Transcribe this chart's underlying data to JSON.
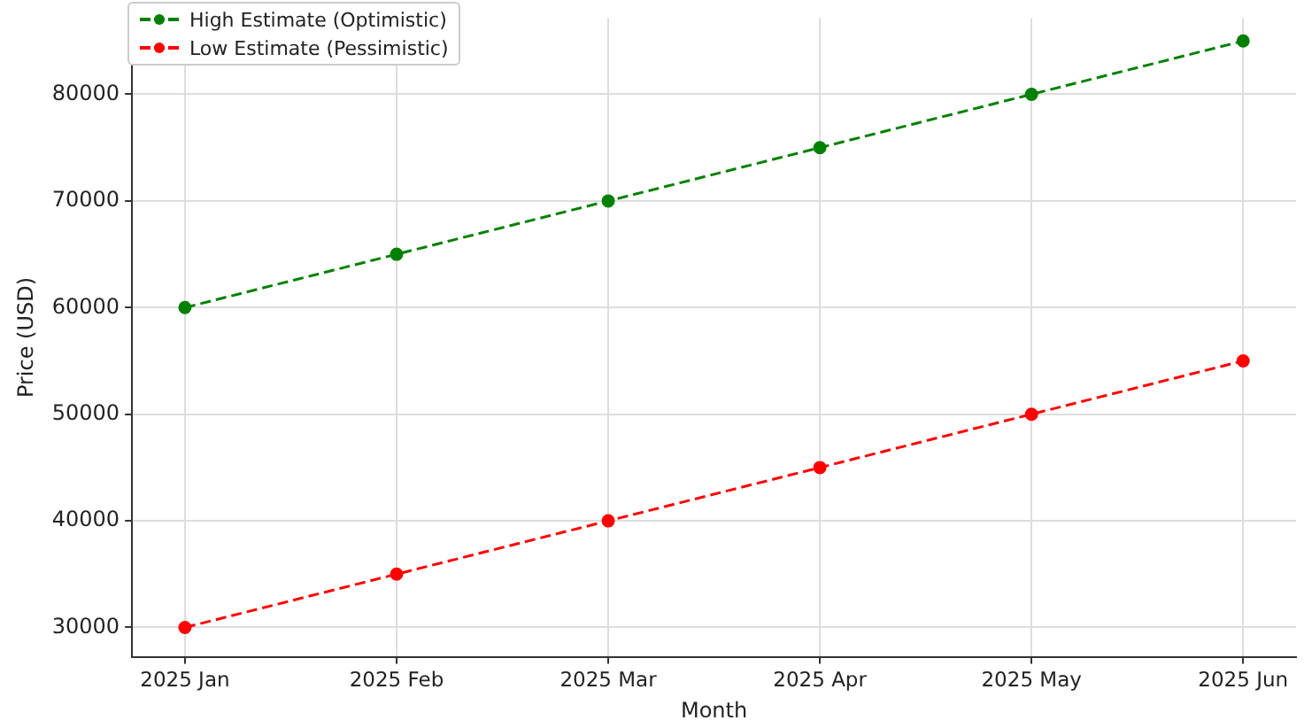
{
  "chart_data": {
    "type": "line",
    "xlabel": "Month",
    "ylabel": "Price (USD)",
    "categories": [
      "2025 Jan",
      "2025 Feb",
      "2025 Mar",
      "2025 Apr",
      "2025 May",
      "2025 Jun"
    ],
    "series": [
      {
        "name": "High Estimate (Optimistic)",
        "color": "#008000",
        "values": [
          60000,
          65000,
          70000,
          75000,
          80000,
          85000
        ]
      },
      {
        "name": "Low Estimate (Pessimistic)",
        "color": "#ff0000",
        "values": [
          30000,
          35000,
          40000,
          45000,
          50000,
          55000
        ]
      }
    ],
    "ylim": [
      27250,
      87150
    ],
    "yticks": [
      30000,
      40000,
      50000,
      60000,
      70000,
      80000
    ],
    "grid": true,
    "legend": "top left",
    "marker": "circle",
    "line_style": "dashed"
  }
}
